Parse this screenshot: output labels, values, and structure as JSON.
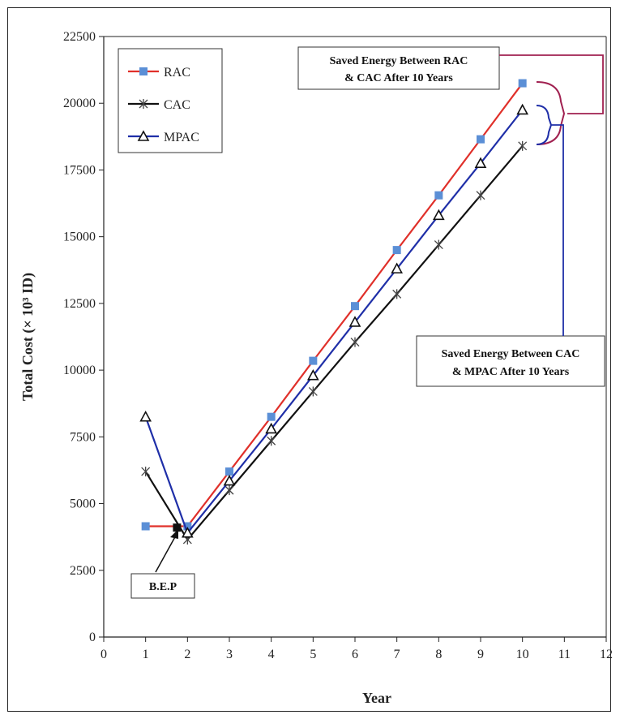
{
  "chart_data": {
    "type": "line",
    "title": "",
    "xlabel": "Year",
    "ylabel": "Total Cost (× 10³ ID)",
    "xlim": [
      0,
      12
    ],
    "ylim": [
      0,
      22500
    ],
    "xticks": [
      0,
      1,
      2,
      3,
      4,
      5,
      6,
      7,
      8,
      9,
      10,
      11,
      12
    ],
    "yticks": [
      0,
      2500,
      5000,
      7500,
      10000,
      12500,
      15000,
      17500,
      20000,
      22500
    ],
    "grid": false,
    "legend_position": "top-left",
    "series": [
      {
        "name": "RAC",
        "color": "#e0302a",
        "marker": "square",
        "marker_color": "#5b8fd6",
        "x": [
          1,
          2,
          3,
          4,
          5,
          6,
          7,
          8,
          9,
          10
        ],
        "y": [
          4150,
          4150,
          6200,
          8250,
          10350,
          12400,
          14500,
          16550,
          18650,
          20750
        ]
      },
      {
        "name": "CAC",
        "color": "#111111",
        "marker": "asterisk",
        "marker_color": "#444444",
        "x": [
          1,
          2,
          3,
          4,
          5,
          6,
          7,
          8,
          9,
          10
        ],
        "y": [
          6200,
          3650,
          5500,
          7350,
          9200,
          11050,
          12850,
          14700,
          16550,
          18400
        ]
      },
      {
        "name": "MPAC",
        "color": "#1f2fa8",
        "marker": "triangle",
        "marker_color": "#111111",
        "x": [
          1,
          2,
          3,
          4,
          5,
          6,
          7,
          8,
          9,
          10
        ],
        "y": [
          8250,
          3900,
          5850,
          7800,
          9800,
          11800,
          13800,
          15800,
          17750,
          19750
        ]
      }
    ],
    "annotations": [
      {
        "id": "bep",
        "text": "B.E.P",
        "x": 1.75,
        "y": 4100
      },
      {
        "id": "rac-cac",
        "lines": [
          "Saved Energy Between RAC",
          "& CAC After 10 Years"
        ]
      },
      {
        "id": "cac-mpac",
        "lines": [
          "Saved Energy Between CAC",
          "& MPAC After 10 Years"
        ]
      }
    ]
  }
}
